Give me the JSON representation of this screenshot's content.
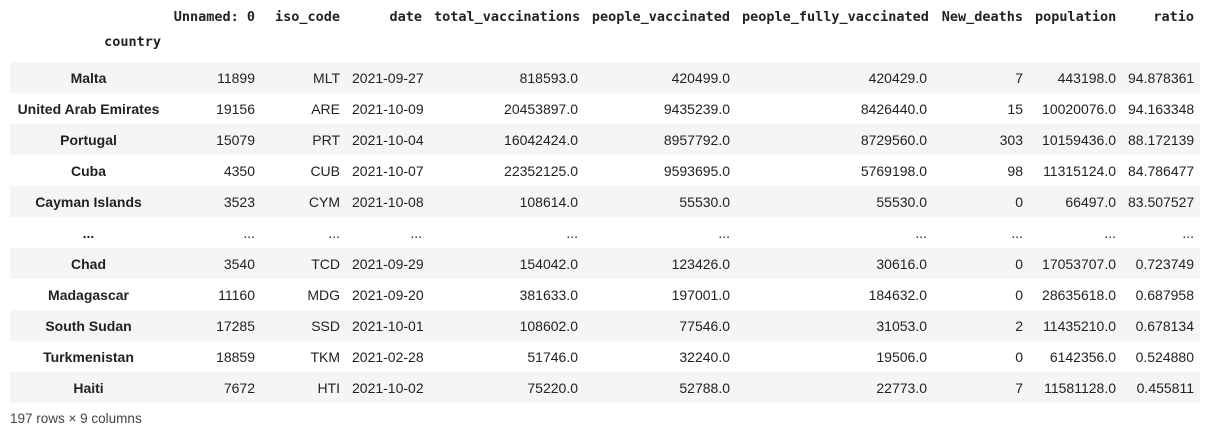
{
  "table": {
    "index_name": "country",
    "columns": [
      "Unnamed: 0",
      "iso_code",
      "date",
      "total_vaccinations",
      "people_vaccinated",
      "people_fully_vaccinated",
      "New_deaths",
      "population",
      "ratio"
    ],
    "rows": [
      {
        "country": "Malta",
        "cells": [
          "11899",
          "MLT",
          "2021-09-27",
          "818593.0",
          "420499.0",
          "420429.0",
          "7",
          "443198.0",
          "94.878361"
        ]
      },
      {
        "country": "United Arab Emirates",
        "cells": [
          "19156",
          "ARE",
          "2021-10-09",
          "20453897.0",
          "9435239.0",
          "8426440.0",
          "15",
          "10020076.0",
          "94.163348"
        ]
      },
      {
        "country": "Portugal",
        "cells": [
          "15079",
          "PRT",
          "2021-10-04",
          "16042424.0",
          "8957792.0",
          "8729560.0",
          "303",
          "10159436.0",
          "88.172139"
        ]
      },
      {
        "country": "Cuba",
        "cells": [
          "4350",
          "CUB",
          "2021-10-07",
          "22352125.0",
          "9593695.0",
          "5769198.0",
          "98",
          "11315124.0",
          "84.786477"
        ]
      },
      {
        "country": "Cayman Islands",
        "cells": [
          "3523",
          "CYM",
          "2021-10-08",
          "108614.0",
          "55530.0",
          "55530.0",
          "0",
          "66497.0",
          "83.507527"
        ]
      },
      {
        "country": "...",
        "cells": [
          "...",
          "...",
          "...",
          "...",
          "...",
          "...",
          "...",
          "...",
          "..."
        ]
      },
      {
        "country": "Chad",
        "cells": [
          "3540",
          "TCD",
          "2021-09-29",
          "154042.0",
          "123426.0",
          "30616.0",
          "0",
          "17053707.0",
          "0.723749"
        ]
      },
      {
        "country": "Madagascar",
        "cells": [
          "11160",
          "MDG",
          "2021-09-20",
          "381633.0",
          "197001.0",
          "184632.0",
          "0",
          "28635618.0",
          "0.687958"
        ]
      },
      {
        "country": "South Sudan",
        "cells": [
          "17285",
          "SSD",
          "2021-10-01",
          "108602.0",
          "77546.0",
          "31053.0",
          "2",
          "11435210.0",
          "0.678134"
        ]
      },
      {
        "country": "Turkmenistan",
        "cells": [
          "18859",
          "TKM",
          "2021-02-28",
          "51746.0",
          "32240.0",
          "19506.0",
          "0",
          "6142356.0",
          "0.524880"
        ]
      },
      {
        "country": "Haiti",
        "cells": [
          "7672",
          "HTI",
          "2021-10-02",
          "75220.0",
          "52788.0",
          "22773.0",
          "7",
          "11581128.0",
          "0.455811"
        ]
      }
    ],
    "footer": "197 rows × 9 columns"
  }
}
